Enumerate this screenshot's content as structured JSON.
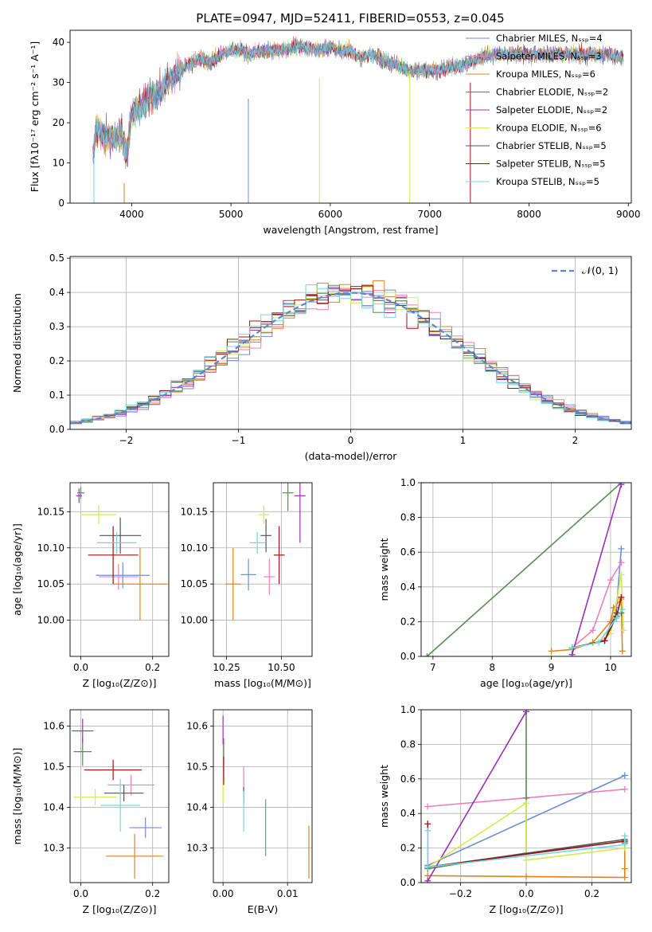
{
  "figure_title": "PLATE=0947, MJD=52411, FIBERID=0553, z=0.045",
  "palette": [
    "#6a8fd6",
    "#f07fb6",
    "#e0821e",
    "#5a8a5a",
    "#9b30b8",
    "#d5ea4f",
    "#555555",
    "#a11010",
    "#72d6e0"
  ],
  "chart_data": [
    {
      "id": "spectrum",
      "type": "line",
      "title": "PLATE=0947, MJD=52411, FIBERID=0553, z=0.045",
      "xlabel": "wavelength [Angstrom, rest frame]",
      "ylabel": "Flux [fλ10⁻¹⁷ erg cm⁻² s⁻¹ A⁻¹]",
      "xlim": [
        3380,
        9030
      ],
      "ylim": [
        0,
        43
      ],
      "xticks": [
        "4000",
        "5000",
        "6000",
        "7000",
        "8000",
        "9000"
      ],
      "yticks": [
        "0",
        "10",
        "20",
        "30",
        "40"
      ],
      "legend_position": "upper-right",
      "legend": [
        "Chabrier MILES, Nₛₛₚ=4",
        "Salpeter MILES, Nₛₛₚ=3",
        "Kroupa MILES, Nₛₛₚ=6",
        "Chabrier ELODIE, Nₛₛₚ=2",
        "Salpeter ELODIE, Nₛₛₚ=2",
        "Kroupa ELODIE, Nₛₛₚ=6",
        "Chabrier STELIB, Nₛₛₚ=5",
        "Salpeter STELIB, Nₛₛₚ=5",
        "Kroupa STELIB, Nₛₛₚ=5"
      ],
      "continuum": {
        "x": [
          3610,
          3650,
          3700,
          3800,
          3900,
          3950,
          4000,
          4100,
          4200,
          4300,
          4400,
          4500,
          4600,
          4700,
          4800,
          4900,
          5000,
          5100,
          5200,
          5300,
          5500,
          5700,
          5900,
          6000,
          6100,
          6200,
          6300,
          6400,
          6500,
          6600,
          6700,
          6800,
          6900,
          7000,
          7100,
          7200,
          7300,
          7400,
          7600,
          7800,
          8000,
          8200,
          8400,
          8600,
          8800,
          8950
        ],
        "y": [
          12,
          19,
          17,
          16,
          17,
          12,
          22,
          24,
          27,
          28,
          31,
          33,
          35,
          36,
          35,
          37,
          38,
          38,
          37,
          38,
          38,
          39,
          38,
          39,
          38,
          38,
          36,
          37,
          36,
          35,
          34,
          33,
          33,
          33,
          33,
          34,
          34,
          35,
          37,
          37,
          37,
          37,
          37,
          37,
          37,
          36
        ]
      },
      "dropouts": [
        [
          3620,
          12
        ],
        [
          3925,
          5
        ],
        [
          5175,
          26
        ],
        [
          5890,
          31
        ],
        [
          6800,
          33
        ],
        [
          7410,
          30
        ]
      ]
    },
    {
      "id": "residuals",
      "type": "histogram",
      "xlabel": "(data-model)/error",
      "ylabel": "Normed distribution",
      "xlim": [
        -2.5,
        2.5
      ],
      "ylim": [
        0,
        0.505
      ],
      "xticks": [
        "−2",
        "−1",
        "0",
        "1",
        "2"
      ],
      "yticks": [
        "0.0",
        "0.1",
        "0.2",
        "0.3",
        "0.4",
        "0.5"
      ],
      "grid": true,
      "legend_position": "upper-right",
      "legend": [
        "𝒩(0, 1)"
      ],
      "bin_width": 0.1
    },
    {
      "id": "age-vs-Z",
      "type": "errorbar",
      "xlabel": "Z [log₁₀(Z/Z⊙)]",
      "ylabel": "age  [log₁₀(age/yr)]",
      "xlim": [
        -0.03,
        0.245
      ],
      "ylim": [
        9.95,
        10.19
      ],
      "xticks": [
        "0.0",
        "0.2"
      ],
      "yticks": [
        "10.00",
        "10.05",
        "10.10",
        "10.15"
      ],
      "grid": true,
      "points": [
        {
          "x": 0.117,
          "y": 10.062,
          "xerr": 0.075,
          "yerr": 0.018,
          "c": 0
        },
        {
          "x": 0.105,
          "y": 10.06,
          "xerr": 0.055,
          "yerr": 0.018,
          "c": 1
        },
        {
          "x": 0.165,
          "y": 10.05,
          "xerr": 0.075,
          "yerr": 0.05,
          "c": 2
        },
        {
          "x": 0.0,
          "y": 10.176,
          "xerr": 0.01,
          "yerr": 0.008,
          "c": 3
        },
        {
          "x": -0.005,
          "y": 10.172,
          "xerr": 0.008,
          "yerr": 0.01,
          "c": 4
        },
        {
          "x": 0.05,
          "y": 10.146,
          "xerr": 0.048,
          "yerr": 0.013,
          "c": 5
        },
        {
          "x": 0.11,
          "y": 10.117,
          "xerr": 0.058,
          "yerr": 0.025,
          "c": 6
        },
        {
          "x": 0.09,
          "y": 10.09,
          "xerr": 0.07,
          "yerr": 0.04,
          "c": 7
        },
        {
          "x": 0.1,
          "y": 10.107,
          "xerr": 0.055,
          "yerr": 0.015,
          "c": 8
        }
      ]
    },
    {
      "id": "age-vs-mass",
      "type": "errorbar",
      "xlabel": "mass [log₁₀(M/M⊙)]",
      "ylabel": "",
      "xlim": [
        10.19,
        10.64
      ],
      "ylim": [
        9.95,
        10.19
      ],
      "xticks": [
        "10.25",
        "10.50"
      ],
      "yticks": [
        "10.00",
        "10.05",
        "10.10",
        "10.15"
      ],
      "grid": true,
      "points": [
        {
          "x": 10.35,
          "y": 10.063,
          "xerr": 0.035,
          "yerr": 0.022,
          "c": 0
        },
        {
          "x": 10.445,
          "y": 10.06,
          "xerr": 0.025,
          "yerr": 0.025,
          "c": 1
        },
        {
          "x": 10.28,
          "y": 10.05,
          "xerr": 0.035,
          "yerr": 0.05,
          "c": 2
        },
        {
          "x": 10.53,
          "y": 10.176,
          "xerr": 0.025,
          "yerr": 0.025,
          "c": 3
        },
        {
          "x": 10.585,
          "y": 10.172,
          "xerr": 0.025,
          "yerr": 0.065,
          "c": 4
        },
        {
          "x": 10.42,
          "y": 10.146,
          "xerr": 0.025,
          "yerr": 0.013,
          "c": 5
        },
        {
          "x": 10.43,
          "y": 10.117,
          "xerr": 0.025,
          "yerr": 0.023,
          "c": 6
        },
        {
          "x": 10.49,
          "y": 10.09,
          "xerr": 0.025,
          "yerr": 0.04,
          "c": 7
        },
        {
          "x": 10.39,
          "y": 10.107,
          "xerr": 0.035,
          "yerr": 0.015,
          "c": 8
        }
      ]
    },
    {
      "id": "weight-vs-age",
      "type": "line",
      "xlabel": "age  [log₁₀(age/yr)]",
      "ylabel": "mass weight",
      "xlim": [
        6.8,
        10.35
      ],
      "ylim": [
        0,
        1.0
      ],
      "xticks": [
        "7",
        "8",
        "9",
        "10"
      ],
      "yticks": [
        "0.0",
        "0.2",
        "0.4",
        "0.6",
        "0.8",
        "1.0"
      ],
      "grid": true,
      "series": [
        {
          "c": 0,
          "x": [
            9.35,
            9.9,
            10.1,
            10.18
          ],
          "y": [
            0.05,
            0.09,
            0.28,
            0.62
          ]
        },
        {
          "c": 1,
          "x": [
            9.35,
            9.7,
            10.0,
            10.18
          ],
          "y": [
            0.05,
            0.15,
            0.44,
            0.54
          ]
        },
        {
          "c": 2,
          "x": [
            9.0,
            9.35,
            9.7,
            10.0,
            10.05,
            10.18,
            10.2
          ],
          "y": [
            0.03,
            0.04,
            0.08,
            0.2,
            0.28,
            0.33,
            0.03
          ]
        },
        {
          "c": 3,
          "x": [
            6.9,
            10.18
          ],
          "y": [
            0.0,
            1.0
          ]
        },
        {
          "c": 4,
          "x": [
            9.35,
            10.18
          ],
          "y": [
            0.01,
            0.99
          ]
        },
        {
          "c": 5,
          "x": [
            9.35,
            9.8,
            10.0,
            10.18,
            10.22
          ],
          "y": [
            0.05,
            0.08,
            0.13,
            0.47,
            0.15
          ]
        },
        {
          "c": 6,
          "x": [
            9.35,
            9.9,
            10.1,
            10.18
          ],
          "y": [
            0.05,
            0.09,
            0.25,
            0.25
          ]
        },
        {
          "c": 7,
          "x": [
            9.35,
            9.9,
            10.1,
            10.18
          ],
          "y": [
            0.05,
            0.09,
            0.23,
            0.34
          ]
        },
        {
          "c": 8,
          "x": [
            9.35,
            9.8,
            10.1,
            10.2
          ],
          "y": [
            0.05,
            0.08,
            0.22,
            0.27
          ]
        }
      ]
    },
    {
      "id": "mass-vs-Z",
      "type": "errorbar",
      "xlabel": "Z [log₁₀(Z/Z⊙)]",
      "ylabel": "mass [log₁₀(M/M⊙)]",
      "xlim": [
        -0.03,
        0.245
      ],
      "ylim": [
        10.215,
        10.64
      ],
      "xticks": [
        "0.0",
        "0.2"
      ],
      "yticks": [
        "10.3",
        "10.4",
        "10.5",
        "10.6"
      ],
      "grid": true,
      "points": [
        {
          "x": 0.18,
          "y": 10.35,
          "xerr": 0.045,
          "yerr": 0.025,
          "c": 0
        },
        {
          "x": 0.14,
          "y": 10.455,
          "xerr": 0.065,
          "yerr": 0.025,
          "c": 1
        },
        {
          "x": 0.15,
          "y": 10.28,
          "xerr": 0.08,
          "yerr": 0.055,
          "c": 2
        },
        {
          "x": 0.005,
          "y": 10.537,
          "xerr": 0.025,
          "yerr": 0.035,
          "c": 3
        },
        {
          "x": 0.005,
          "y": 10.588,
          "xerr": 0.03,
          "yerr": 0.03,
          "c": 4
        },
        {
          "x": 0.04,
          "y": 10.425,
          "xerr": 0.06,
          "yerr": 0.02,
          "c": 5
        },
        {
          "x": 0.12,
          "y": 10.435,
          "xerr": 0.055,
          "yerr": 0.02,
          "c": 6
        },
        {
          "x": 0.09,
          "y": 10.492,
          "xerr": 0.08,
          "yerr": 0.025,
          "c": 7
        },
        {
          "x": 0.11,
          "y": 10.405,
          "xerr": 0.055,
          "yerr": 0.065,
          "c": 8
        }
      ]
    },
    {
      "id": "mass-vs-EBV",
      "type": "errorbar",
      "xlabel": "E(B-V)",
      "ylabel": "",
      "xlim": [
        -0.0015,
        0.0138
      ],
      "ylim": [
        10.215,
        10.64
      ],
      "xticks": [
        "0.00",
        "0.01"
      ],
      "yticks": [
        "10.3",
        "10.4",
        "10.5",
        "10.6"
      ],
      "grid": true,
      "points": [
        {
          "x": 0.0066,
          "y": 10.35,
          "xerr": 0,
          "yerr": 0.07,
          "c": 0
        },
        {
          "x": 0.0032,
          "y": 10.46,
          "xerr": 0,
          "yerr": 0.04,
          "c": 1
        },
        {
          "x": 0.0133,
          "y": 10.29,
          "xerr": 0,
          "yerr": 0.065,
          "c": 2
        },
        {
          "x": 0.0001,
          "y": 10.535,
          "xerr": 0,
          "yerr": 0.035,
          "c": 3
        },
        {
          "x": 0.0,
          "y": 10.59,
          "xerr": 0,
          "yerr": 0.035,
          "c": 4
        },
        {
          "x": 0.0,
          "y": 10.44,
          "xerr": 0,
          "yerr": 0.03,
          "c": 5
        },
        {
          "x": 0.0032,
          "y": 10.43,
          "xerr": 0,
          "yerr": 0.02,
          "c": 6
        },
        {
          "x": 0.0001,
          "y": 10.49,
          "xerr": 0,
          "yerr": 0.035,
          "c": 7
        },
        {
          "x": 0.0032,
          "y": 10.39,
          "xerr": 0,
          "yerr": 0.05,
          "c": 8
        }
      ]
    },
    {
      "id": "weight-vs-Z",
      "type": "line",
      "xlabel": "Z [log₁₀(Z/Z⊙)]",
      "ylabel": "mass weight",
      "xlim": [
        -0.32,
        0.32
      ],
      "ylim": [
        0,
        1.0
      ],
      "xticks": [
        "−0.2",
        "0.0",
        "0.2"
      ],
      "yticks": [
        "0.0",
        "0.2",
        "0.4",
        "0.6",
        "0.8",
        "1.0"
      ],
      "grid": true,
      "series": [
        {
          "c": 0,
          "x": [
            -0.3,
            0.3
          ],
          "y": [
            0.1,
            0.62
          ]
        },
        {
          "c": 1,
          "x": [
            -0.3,
            0.3
          ],
          "y": [
            0.44,
            0.54
          ]
        },
        {
          "c": 2,
          "x": [
            -0.3,
            0.0,
            0.3,
            0.3,
            0.3
          ],
          "y": [
            0.04,
            0.035,
            0.03,
            0.2,
            0.08
          ]
        },
        {
          "c": 3,
          "x": [
            -0.3,
            0.0,
            0.0,
            0.0
          ],
          "y": [
            0.08,
            0.17,
            0.99,
            0.49
          ]
        },
        {
          "c": 4,
          "x": [
            -0.3,
            0.0
          ],
          "y": [
            0.01,
            0.99
          ]
        },
        {
          "c": 5,
          "x": [
            -0.3,
            0.0,
            0.0,
            0.3
          ],
          "y": [
            0.09,
            0.46,
            0.13,
            0.2
          ]
        },
        {
          "c": 6,
          "x": [
            -0.3,
            0.3,
            0.3
          ],
          "y": [
            0.09,
            0.25,
            0.23
          ]
        },
        {
          "c": 7,
          "x": [
            -0.3,
            -0.3,
            0.3
          ],
          "y": [
            0.34,
            0.09,
            0.24
          ]
        },
        {
          "c": 8,
          "x": [
            -0.3,
            -0.3,
            0.3,
            0.3
          ],
          "y": [
            0.3,
            0.09,
            0.22,
            0.27
          ]
        }
      ]
    }
  ]
}
